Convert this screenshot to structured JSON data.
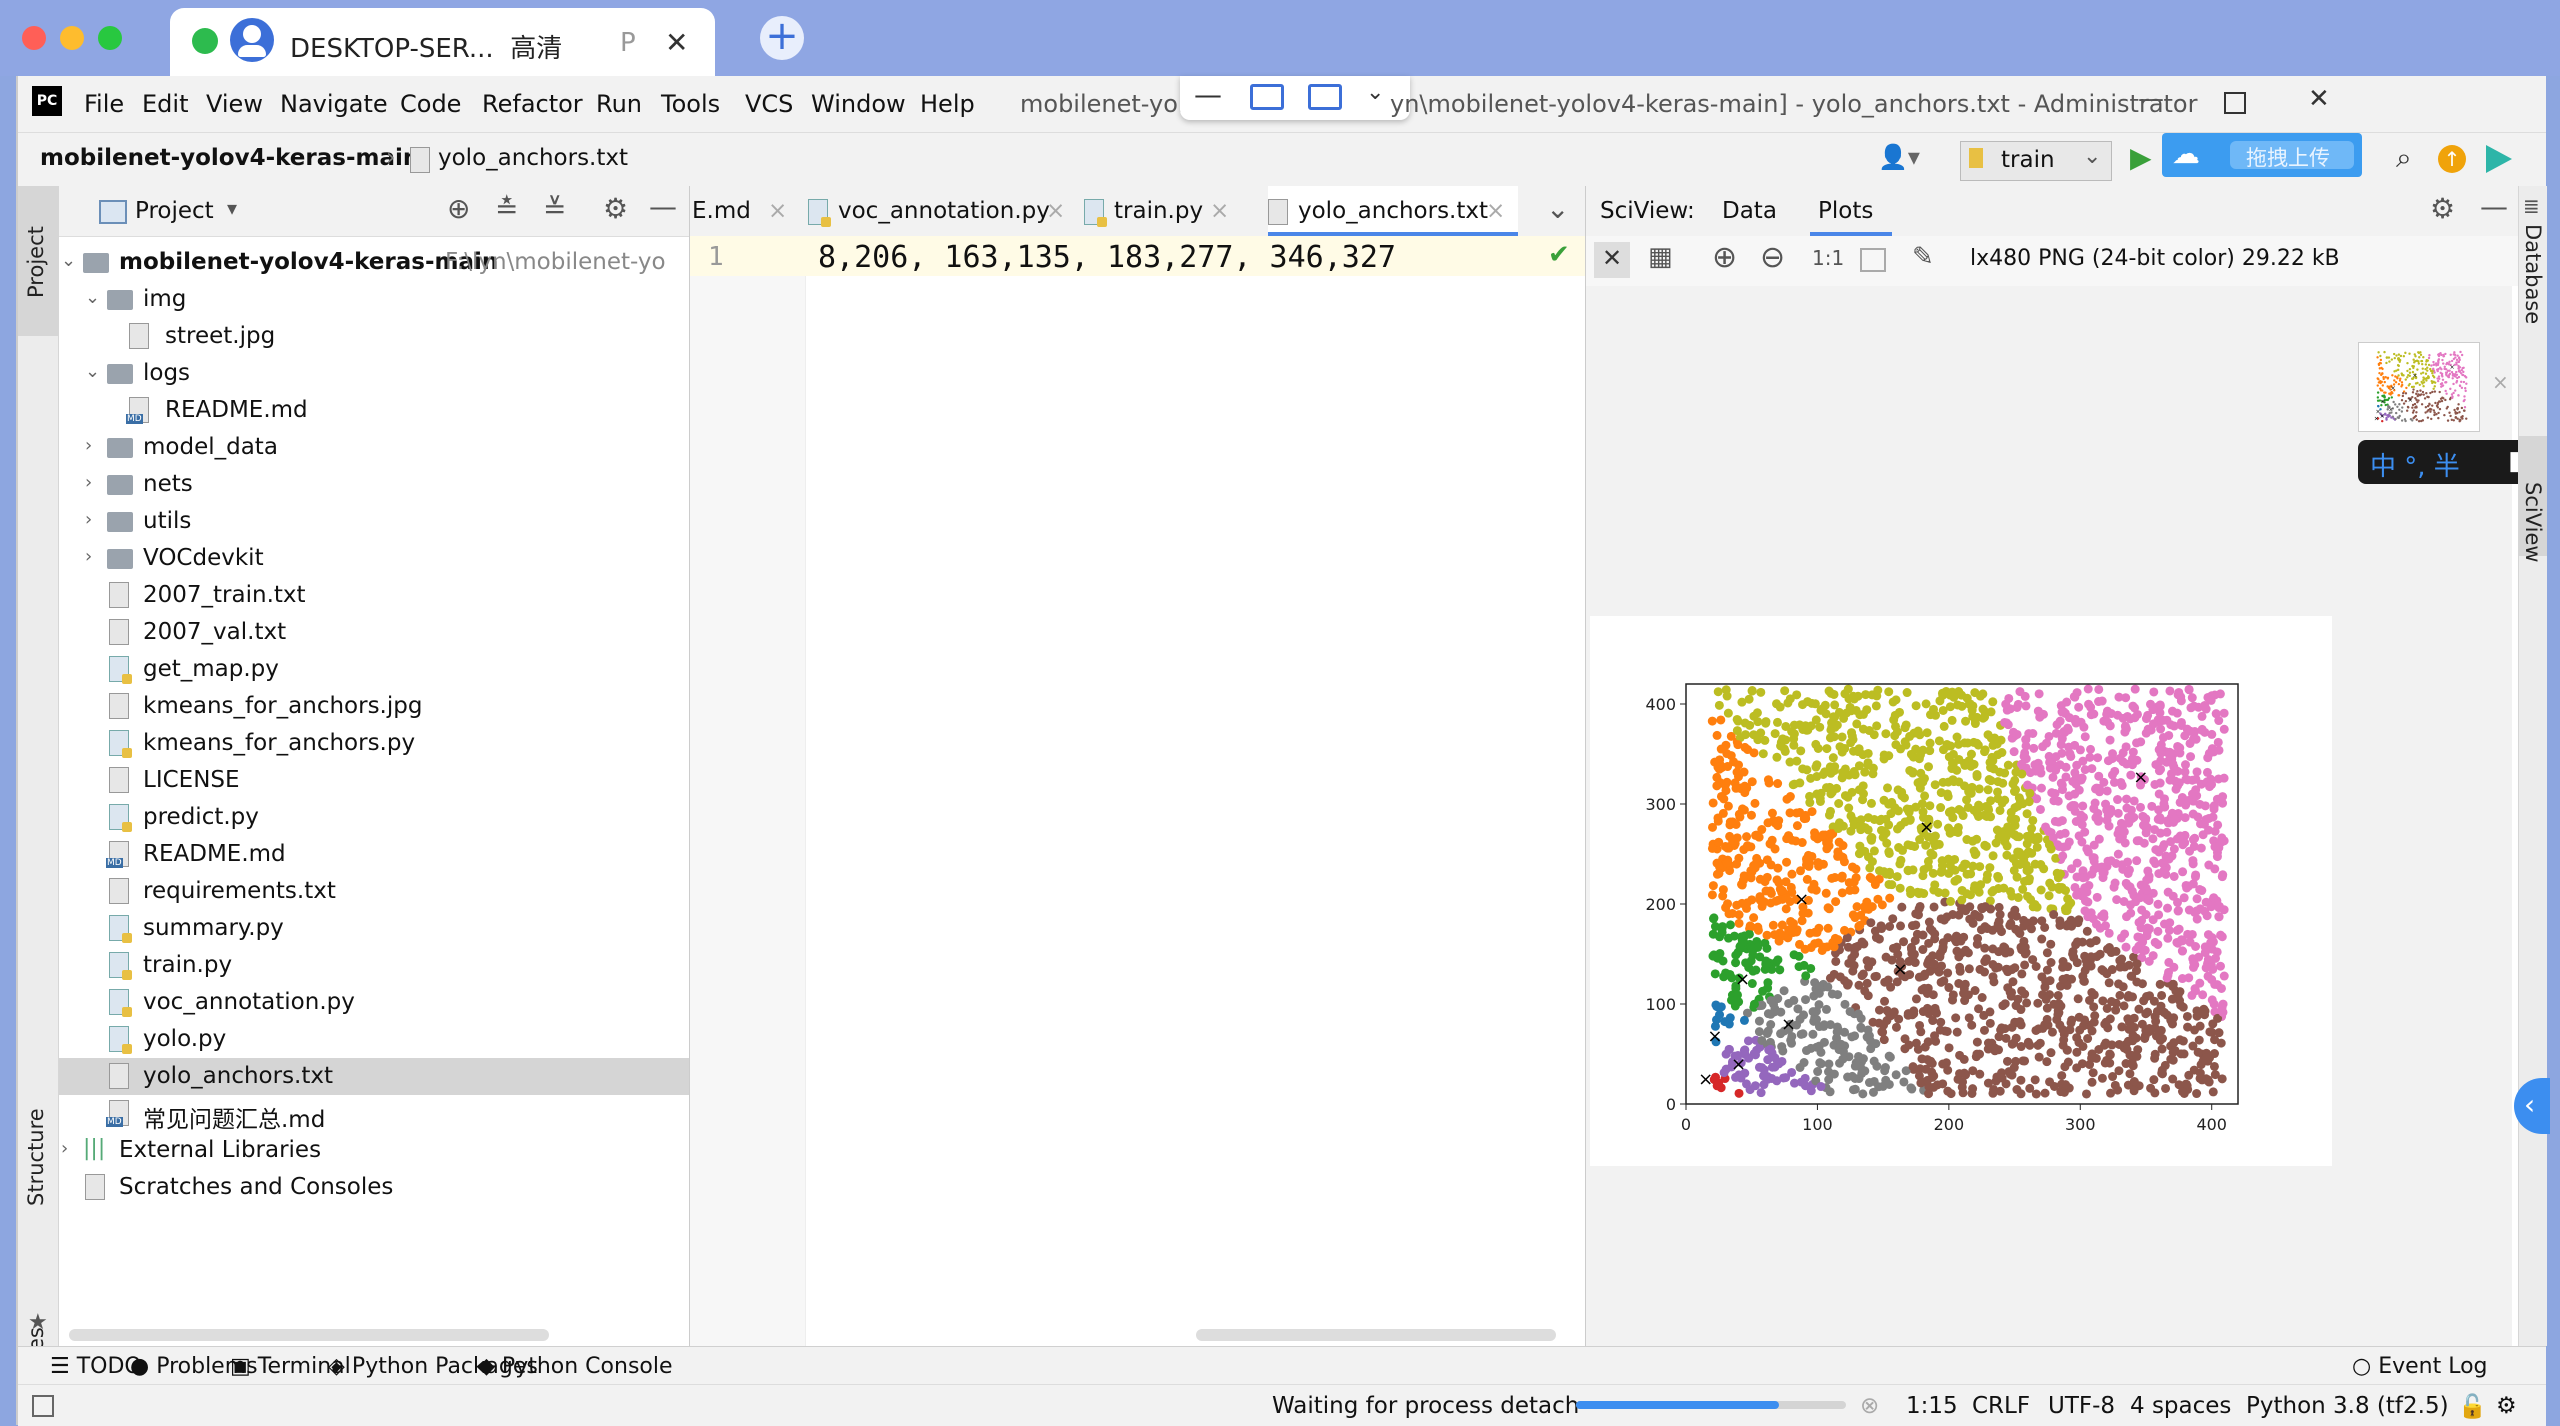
{
  "browser": {
    "tab_title": "DESKTOP-SER...",
    "tab_quality": "高清",
    "tab_p": "P",
    "close": "✕",
    "new_tab": "+"
  },
  "menu": {
    "items": [
      "File",
      "Edit",
      "View",
      "Navigate",
      "Code",
      "Refactor",
      "Run",
      "Tools",
      "VCS",
      "Window",
      "Help"
    ],
    "window_title_left": "mobilenet-yol",
    "window_title_right": "yn\\mobilenet-yolov4-keras-main] - yolo_anchors.txt - Administrator"
  },
  "nav": {
    "project": "mobilenet-yolov4-keras-main",
    "file": "yolo_anchors.txt",
    "run_config": "train",
    "upload": "拖拽上传"
  },
  "left_strip": {
    "project": "Project",
    "structure": "Structure",
    "favorites": "Favorites"
  },
  "project_panel": {
    "title": "Project",
    "root": "mobilenet-yolov4-keras-main",
    "root_path": "F:\\lyn\\mobilenet-yo",
    "items": [
      "img",
      "street.jpg",
      "logs",
      "README.md",
      "model_data",
      "nets",
      "utils",
      "VOCdevkit",
      "2007_train.txt",
      "2007_val.txt",
      "get_map.py",
      "kmeans_for_anchors.jpg",
      "kmeans_for_anchors.py",
      "LICENSE",
      "predict.py",
      "README.md",
      "requirements.txt",
      "summary.py",
      "train.py",
      "voc_annotation.py",
      "yolo.py",
      "yolo_anchors.txt",
      "常见问题汇总.md",
      "External Libraries",
      "Scratches and Consoles"
    ]
  },
  "editor": {
    "tabs": [
      "E.md",
      "voc_annotation.py",
      "train.py",
      "yolo_anchors.txt"
    ],
    "line_number": "1",
    "code": "8,206, 163,135, 183,277, 346,327"
  },
  "sciview": {
    "label": "SciView:",
    "tab_data": "Data",
    "tab_plots": "Plots",
    "image_info": "lx480 PNG (24-bit color) 29.22 kB",
    "zoom_label": "1:1",
    "ime": "中 °, 半"
  },
  "right_strip": {
    "database": "Database",
    "sciview": "SciView"
  },
  "chart_data": {
    "type": "scatter",
    "xlim": [
      0,
      420
    ],
    "ylim": [
      0,
      420
    ],
    "xticks": [
      0,
      100,
      200,
      300,
      400
    ],
    "yticks": [
      0,
      100,
      200,
      300,
      400
    ],
    "clusters": [
      {
        "color": "#d62728",
        "center": [
          15,
          25
        ]
      },
      {
        "color": "#1f77b4",
        "center": [
          22,
          68
        ]
      },
      {
        "color": "#9467bd",
        "center": [
          40,
          40
        ]
      },
      {
        "color": "#2ca02c",
        "center": [
          43,
          125
        ]
      },
      {
        "color": "#7f7f7f",
        "center": [
          78,
          80
        ]
      },
      {
        "color": "#ff7f0e",
        "center": [
          88,
          205
        ]
      },
      {
        "color": "#8c564b",
        "center": [
          163,
          135
        ]
      },
      {
        "color": "#bcbd22",
        "center": [
          183,
          277
        ]
      },
      {
        "color": "#e377c2",
        "center": [
          346,
          327
        ]
      }
    ]
  },
  "bottom_tools": [
    "TODO",
    "Problems",
    "Terminal",
    "Python Packages",
    "Python Console",
    "Event Log"
  ],
  "status": {
    "message": "Waiting for process detach",
    "progress": 0.75,
    "position": "1:15",
    "line_sep": "CRLF",
    "encoding": "UTF-8",
    "indent": "4 spaces",
    "interpreter": "Python 3.8 (tf2.5)"
  }
}
